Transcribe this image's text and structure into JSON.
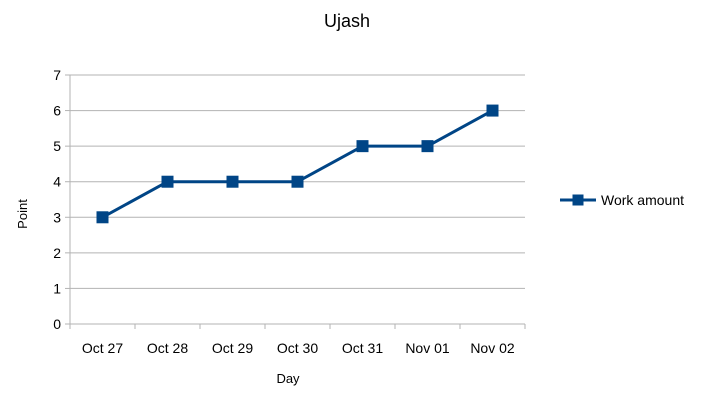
{
  "chart_data": {
    "type": "line",
    "title": "Ujash",
    "xlabel": "Day",
    "ylabel": "Point",
    "categories": [
      "Oct 27",
      "Oct 28",
      "Oct 29",
      "Oct 30",
      "Oct 31",
      "Nov 01",
      "Nov 02"
    ],
    "series": [
      {
        "name": "Work amount",
        "values": [
          3,
          4,
          4,
          4,
          5,
          5,
          6
        ],
        "color": "#004586",
        "marker": "square"
      }
    ],
    "ylim": [
      0,
      7
    ],
    "yticks": [
      "0",
      "1",
      "2",
      "3",
      "4",
      "5",
      "6",
      "7"
    ],
    "grid": "horizontal",
    "gridColor": "#b3b3b3",
    "legend_position": "right"
  }
}
